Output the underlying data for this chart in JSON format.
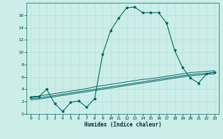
{
  "xlabel": "Humidex (Indice chaleur)",
  "bg_color": "#cceee8",
  "grid_color": "#b8ddd8",
  "line_color": "#006666",
  "xlim": [
    -0.5,
    23.5
  ],
  "ylim": [
    0,
    18
  ],
  "xticks": [
    0,
    1,
    2,
    3,
    4,
    5,
    6,
    7,
    8,
    9,
    10,
    11,
    12,
    13,
    14,
    15,
    16,
    17,
    18,
    19,
    20,
    21,
    22,
    23
  ],
  "yticks": [
    0,
    2,
    4,
    6,
    8,
    10,
    12,
    14,
    16
  ],
  "line1_x": [
    0,
    1,
    2,
    3,
    4,
    5,
    6,
    7,
    8,
    9,
    10,
    11,
    12,
    13,
    14,
    15,
    16,
    17,
    18,
    19,
    20,
    21,
    22,
    23
  ],
  "line1_y": [
    2.7,
    2.8,
    4.0,
    1.7,
    0.4,
    1.9,
    2.1,
    1.1,
    2.5,
    9.7,
    13.5,
    15.5,
    17.2,
    17.3,
    16.4,
    16.4,
    16.4,
    14.7,
    10.3,
    7.5,
    5.8,
    5.0,
    6.5,
    6.8
  ],
  "line2_x": [
    0,
    1,
    2,
    3,
    4,
    5,
    6,
    7,
    8,
    9,
    10,
    11,
    12,
    13,
    14,
    15,
    16,
    17,
    18,
    19,
    20,
    21,
    22,
    23
  ],
  "line2_y": [
    2.8,
    2.9,
    3.1,
    3.3,
    3.5,
    3.7,
    3.9,
    4.1,
    4.4,
    4.6,
    4.8,
    5.0,
    5.2,
    5.4,
    5.6,
    5.7,
    5.9,
    6.1,
    6.3,
    6.5,
    6.7,
    6.8,
    6.9,
    7.0
  ],
  "line3_x": [
    0,
    1,
    2,
    3,
    4,
    5,
    6,
    7,
    8,
    9,
    10,
    11,
    12,
    13,
    14,
    15,
    16,
    17,
    18,
    19,
    20,
    21,
    22,
    23
  ],
  "line3_y": [
    2.5,
    2.6,
    2.8,
    3.0,
    3.2,
    3.4,
    3.6,
    3.8,
    4.0,
    4.2,
    4.4,
    4.6,
    4.8,
    5.0,
    5.2,
    5.4,
    5.6,
    5.8,
    6.0,
    6.2,
    6.4,
    6.5,
    6.6,
    6.7
  ],
  "line4_x": [
    0,
    1,
    2,
    3,
    4,
    5,
    6,
    7,
    8,
    9,
    10,
    11,
    12,
    13,
    14,
    15,
    16,
    17,
    18,
    19,
    20,
    21,
    22,
    23
  ],
  "line4_y": [
    2.3,
    2.4,
    2.6,
    2.8,
    3.0,
    3.2,
    3.4,
    3.6,
    3.8,
    4.0,
    4.2,
    4.4,
    4.6,
    4.8,
    5.0,
    5.2,
    5.4,
    5.6,
    5.8,
    6.0,
    6.2,
    6.3,
    6.4,
    6.5
  ]
}
